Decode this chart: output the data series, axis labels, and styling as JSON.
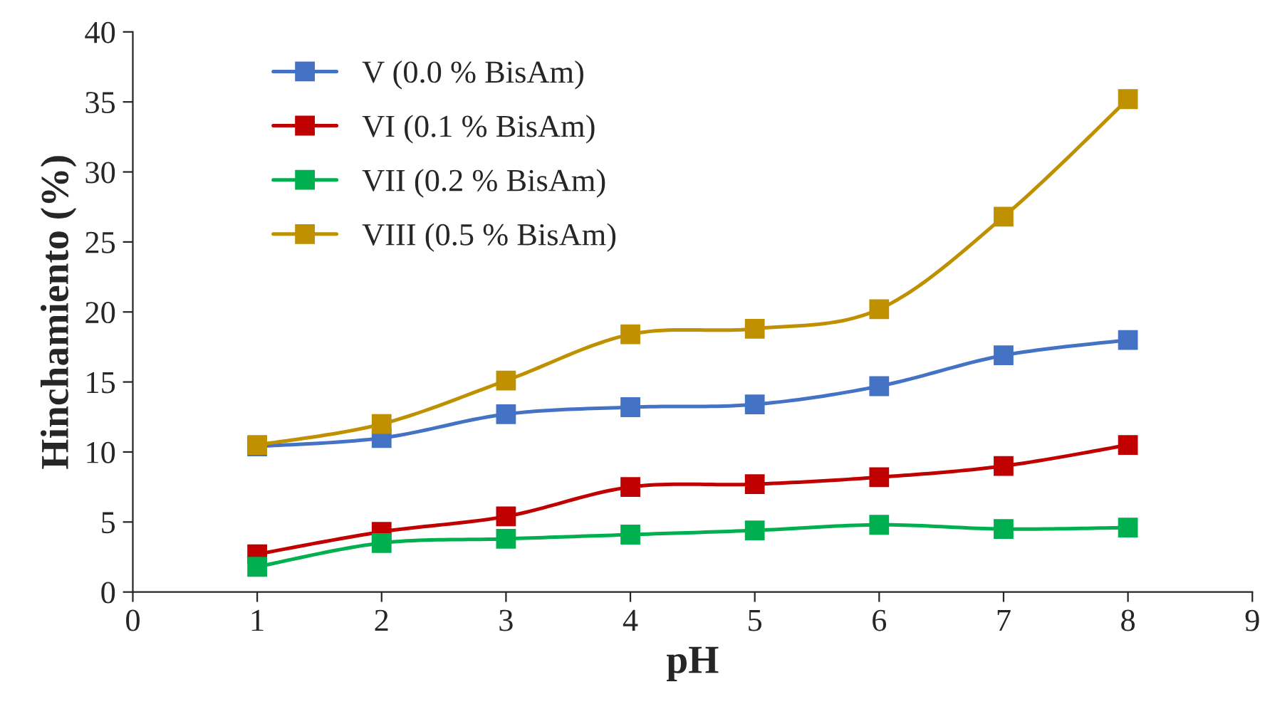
{
  "chart_data": {
    "type": "line",
    "xlabel": "pH",
    "ylabel": "Hinchamiento (%)",
    "x": [
      1,
      2,
      3,
      4,
      5,
      6,
      7,
      8
    ],
    "series": [
      {
        "name": "V (0.0 % BisAm)",
        "color": "#4472c4",
        "values": [
          10.4,
          11.0,
          12.7,
          13.2,
          13.4,
          14.7,
          16.9,
          18.0
        ]
      },
      {
        "name": "VI (0.1 % BisAm)",
        "color": "#c00000",
        "values": [
          2.7,
          4.3,
          5.4,
          7.5,
          7.7,
          8.2,
          9.0,
          10.5
        ]
      },
      {
        "name": "VII (0.2 % BisAm)",
        "color": "#00b050",
        "values": [
          1.8,
          3.5,
          3.8,
          4.1,
          4.4,
          4.8,
          4.5,
          4.6
        ]
      },
      {
        "name": "VIII (0.5 % BisAm)",
        "color": "#bf9000",
        "values": [
          10.5,
          12.0,
          15.1,
          18.4,
          18.8,
          20.2,
          26.8,
          35.2
        ]
      }
    ],
    "xlim": [
      0,
      9
    ],
    "xticks": [
      0,
      1,
      2,
      3,
      4,
      5,
      6,
      7,
      8,
      9
    ],
    "ylim": [
      0,
      40
    ],
    "yticks": [
      0,
      5,
      10,
      15,
      20,
      25,
      30,
      35,
      40
    ],
    "grid": false,
    "legend": "top left",
    "marker": "square",
    "line_style": "solid"
  }
}
